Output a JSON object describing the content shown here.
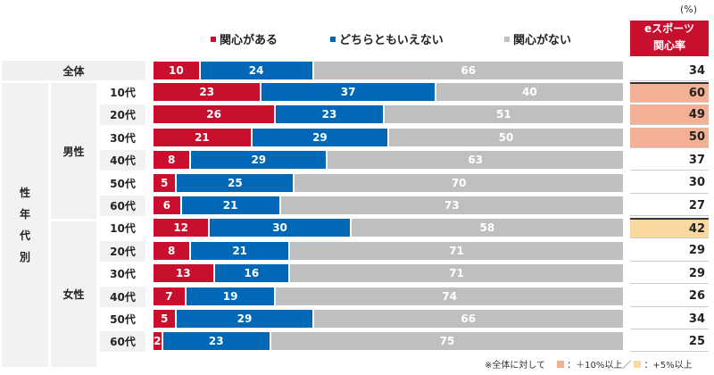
{
  "unit_label": "(%)",
  "rate_header": [
    "eスポーツ",
    "関心率"
  ],
  "side_label": [
    "性",
    "年",
    "代",
    "別"
  ],
  "total_label": "全体",
  "genders": [
    "男性",
    "女性"
  ],
  "footnote": {
    "prefix": "※全体に対して",
    "high_label": "：＋10%以上／",
    "mid_label": "：+5%以上"
  },
  "colors": {
    "interested": "#c8102e",
    "neutral": "#0068b7",
    "not_interested": "#bfbfbf",
    "high": "#f4b094",
    "mid": "#fad9a0",
    "header": "#c8102e"
  },
  "chart_data": {
    "type": "bar",
    "orientation": "horizontal-stacked",
    "xlim": [
      0,
      100
    ],
    "legend_position": "top",
    "categories": [
      "全体",
      "男性 10代",
      "男性 20代",
      "男性 30代",
      "男性 40代",
      "男性 50代",
      "男性 60代",
      "女性 10代",
      "女性 20代",
      "女性 30代",
      "女性 40代",
      "女性 50代",
      "女性 60代"
    ],
    "row_labels": [
      "全体",
      "10代",
      "20代",
      "30代",
      "40代",
      "50代",
      "60代",
      "10代",
      "20代",
      "30代",
      "40代",
      "50代",
      "60代"
    ],
    "series": [
      {
        "name": "関心がある",
        "values": [
          10,
          23,
          26,
          21,
          8,
          5,
          6,
          12,
          8,
          13,
          7,
          5,
          2
        ]
      },
      {
        "name": "どちらともいえない",
        "values": [
          24,
          37,
          23,
          29,
          29,
          25,
          21,
          30,
          21,
          16,
          19,
          29,
          23
        ]
      },
      {
        "name": "関心がない",
        "values": [
          66,
          40,
          51,
          50,
          63,
          70,
          73,
          58,
          71,
          71,
          74,
          66,
          75
        ]
      }
    ],
    "rate": {
      "name": "eスポーツ関心率",
      "values": [
        34,
        60,
        49,
        50,
        37,
        30,
        27,
        42,
        29,
        29,
        26,
        34,
        25
      ],
      "highlight": [
        "none",
        "high",
        "high",
        "high",
        "none",
        "none",
        "none",
        "mid",
        "none",
        "none",
        "none",
        "none",
        "none"
      ]
    }
  }
}
